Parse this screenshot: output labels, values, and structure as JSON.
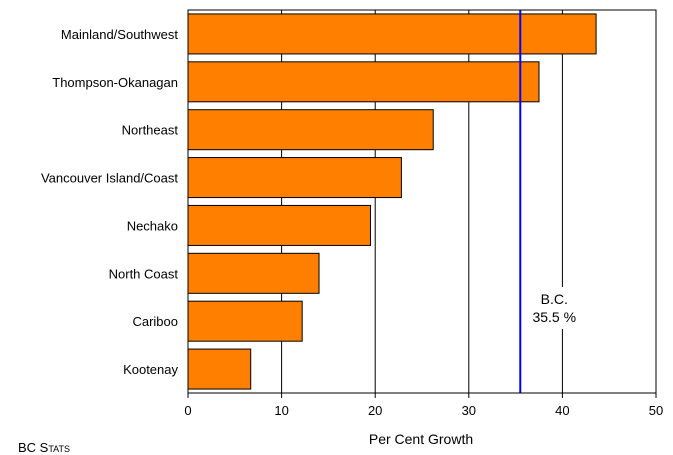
{
  "chart_data": {
    "type": "bar",
    "orientation": "horizontal",
    "categories": [
      "Mainland/Southwest",
      "Thompson-Okanagan",
      "Northeast",
      "Vancouver Island/Coast",
      "Nechako",
      "North Coast",
      "Cariboo",
      "Kootenay"
    ],
    "values": [
      43.6,
      37.5,
      26.2,
      22.8,
      19.5,
      14.0,
      12.2,
      6.7
    ],
    "xlabel": "Per Cent Growth",
    "xlim": [
      0,
      50
    ],
    "xticks": [
      0,
      10,
      20,
      30,
      40,
      50
    ],
    "grid": "vertical",
    "bar_color": "#ff8000",
    "reference_line": {
      "value": 35.5,
      "label_line1": "B.C.",
      "label_line2": "35.5 %",
      "color": "#0000ff"
    }
  },
  "source_label": "BC Stats"
}
